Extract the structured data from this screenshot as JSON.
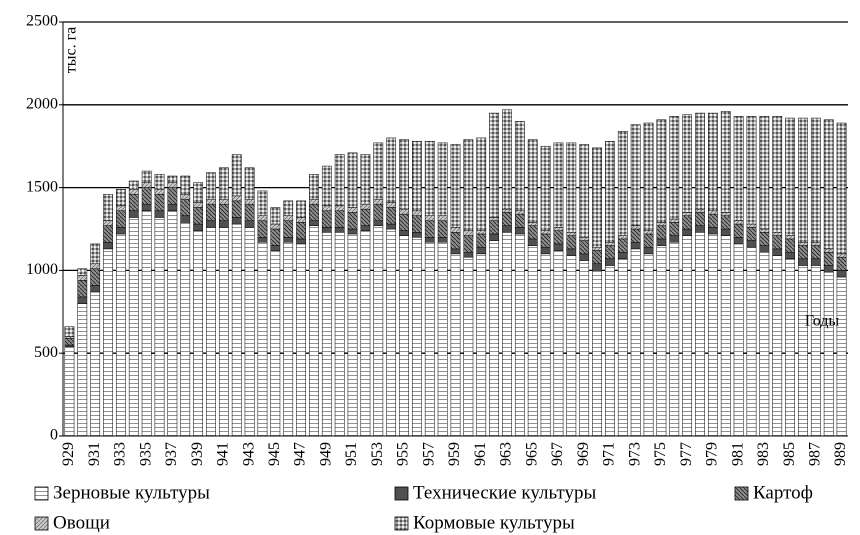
{
  "chart_data": {
    "type": "stacked-bar",
    "y_axis_label": "тыс. га",
    "x_axis_label": "Годы",
    "categories": [
      "929",
      null,
      "931",
      null,
      "933",
      null,
      "935",
      null,
      "937",
      null,
      "939",
      null,
      "941",
      null,
      "943",
      null,
      "945",
      null,
      "947",
      null,
      "949",
      null,
      "951",
      null,
      "953",
      null,
      "955",
      null,
      "957",
      null,
      "959",
      null,
      "961",
      null,
      "963",
      null,
      "965",
      null,
      "967",
      null,
      "969",
      null,
      "971",
      null,
      "973",
      null,
      "975",
      null,
      "977",
      null,
      "979",
      null,
      "981",
      null,
      "983",
      null,
      "985",
      null,
      "987",
      null,
      "989"
    ],
    "series": [
      {
        "name": "Зерновые культуры",
        "color": "#ffffff",
        "values": [
          540,
          800,
          870,
          1130,
          1220,
          1320,
          1360,
          1320,
          1360,
          1290,
          1240,
          1260,
          1260,
          1280,
          1260,
          1170,
          1120,
          1170,
          1160,
          1270,
          1230,
          1230,
          1220,
          1240,
          1270,
          1250,
          1210,
          1200,
          1170,
          1170,
          1100,
          1080,
          1100,
          1180,
          1230,
          1220,
          1150,
          1100,
          1120,
          1090,
          1060,
          1000,
          1030,
          1070,
          1130,
          1100,
          1150,
          1170,
          1210,
          1230,
          1220,
          1210,
          1160,
          1140,
          1110,
          1090,
          1070,
          1030,
          1030,
          990,
          960
        ]
      },
      {
        "name": "Технические культуры",
        "color": "#505050",
        "values": [
          10,
          40,
          40,
          40,
          40,
          40,
          40,
          40,
          40,
          40,
          40,
          40,
          40,
          40,
          40,
          30,
          30,
          30,
          30,
          30,
          30,
          30,
          30,
          30,
          30,
          30,
          30,
          30,
          30,
          30,
          30,
          30,
          40,
          40,
          40,
          40,
          40,
          40,
          40,
          40,
          40,
          40,
          40,
          40,
          40,
          40,
          40,
          40,
          40,
          40,
          40,
          40,
          40,
          40,
          40,
          40,
          40,
          40,
          40,
          40,
          40
        ]
      },
      {
        "name": "Картоф",
        "color": "#8c8c8c",
        "values": [
          40,
          100,
          100,
          100,
          100,
          100,
          100,
          100,
          100,
          100,
          100,
          100,
          100,
          100,
          100,
          100,
          100,
          100,
          100,
          100,
          100,
          100,
          100,
          100,
          100,
          100,
          100,
          100,
          100,
          100,
          100,
          100,
          80,
          80,
          80,
          80,
          80,
          80,
          80,
          80,
          80,
          80,
          80,
          80,
          80,
          80,
          80,
          80,
          80,
          80,
          80,
          80,
          80,
          80,
          80,
          80,
          80,
          80,
          80,
          80,
          80
        ]
      },
      {
        "name": "Овощи",
        "color": "#c8c8c8",
        "values": [
          10,
          30,
          30,
          30,
          30,
          30,
          30,
          30,
          30,
          30,
          30,
          30,
          30,
          30,
          30,
          30,
          30,
          30,
          30,
          30,
          30,
          30,
          30,
          30,
          30,
          30,
          30,
          30,
          30,
          30,
          30,
          30,
          20,
          20,
          20,
          20,
          20,
          20,
          20,
          20,
          20,
          20,
          20,
          20,
          20,
          20,
          20,
          20,
          20,
          20,
          20,
          20,
          20,
          20,
          20,
          20,
          20,
          20,
          20,
          20,
          20
        ]
      },
      {
        "name": "Кормовые культуры",
        "color": "#a8a8a8",
        "values": [
          60,
          40,
          120,
          160,
          100,
          50,
          70,
          90,
          40,
          110,
          120,
          160,
          190,
          250,
          190,
          150,
          100,
          90,
          100,
          150,
          240,
          310,
          330,
          300,
          340,
          390,
          420,
          420,
          450,
          440,
          500,
          550,
          560,
          630,
          600,
          540,
          500,
          510,
          510,
          540,
          560,
          600,
          610,
          630,
          610,
          650,
          620,
          620,
          590,
          580,
          590,
          610,
          630,
          650,
          680,
          700,
          710,
          750,
          750,
          780,
          790
        ]
      }
    ],
    "ylim": [
      0,
      2500
    ],
    "yticks": [
      0,
      500,
      1000,
      1500,
      2000,
      2500
    ],
    "grid": true
  }
}
